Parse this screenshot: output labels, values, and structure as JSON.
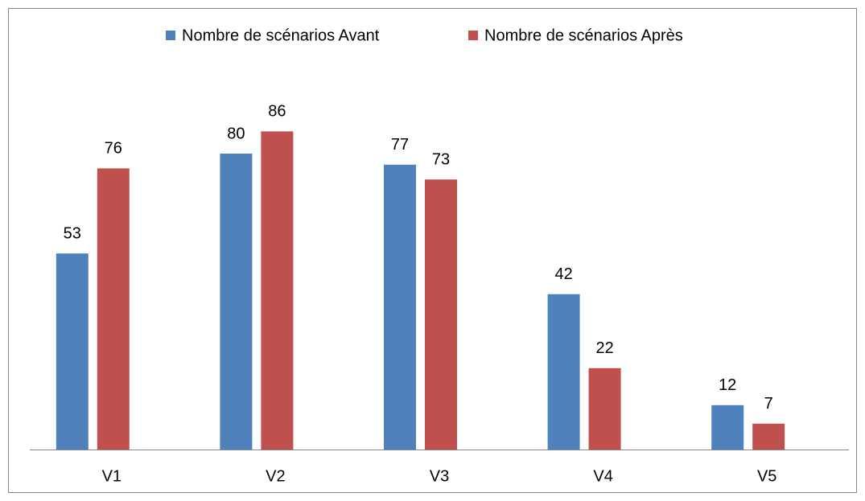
{
  "chart_data": {
    "type": "bar",
    "categories": [
      "V1",
      "V2",
      "V3",
      "V4",
      "V5"
    ],
    "series": [
      {
        "name": "Nombre de scénarios Avant",
        "color": "#4f81bd",
        "values": [
          53,
          80,
          77,
          42,
          12
        ]
      },
      {
        "name": "Nombre de scénarios Après",
        "color": "#c0504d",
        "values": [
          76,
          86,
          73,
          22,
          7
        ]
      }
    ],
    "ylim": [
      0,
      100
    ]
  }
}
